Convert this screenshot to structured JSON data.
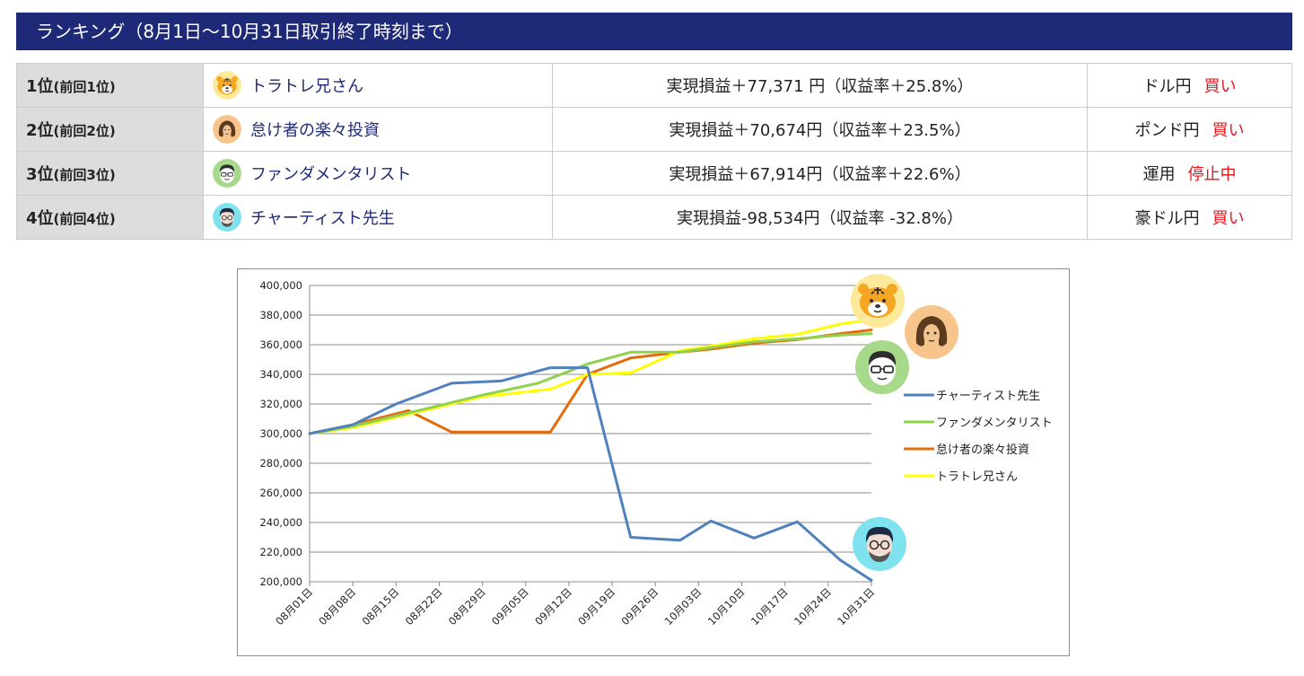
{
  "header": {
    "title": "ランキング（8月1日～10月31日取引終了時刻まで）"
  },
  "ranking": [
    {
      "rank": "1位",
      "prev": "(前回1位)",
      "name": "トラトレ兄さん",
      "avatar": "tiger-avatar-icon",
      "pnl": "実現損益＋77,371 円（収益率＋25.8%）",
      "pair": "ドル円",
      "action": "買い"
    },
    {
      "rank": "2位",
      "prev": "(前回2位)",
      "name": "怠け者の楽々投資",
      "avatar": "long-hair-avatar-icon",
      "pnl": "実現損益＋70,674円（収益率＋23.5%）",
      "pair": "ポンド円",
      "action": "買い"
    },
    {
      "rank": "3位",
      "prev": "(前回3位)",
      "name": "ファンダメンタリスト",
      "avatar": "glasses-avatar-icon",
      "pnl": "実現損益＋67,914円（収益率＋22.6%）",
      "pair": "運用",
      "action": "停止中"
    },
    {
      "rank": "4位",
      "prev": "(前回4位)",
      "name": "チャーティスト先生",
      "avatar": "bearded-avatar-icon",
      "pnl": "実現損益-98,534円（収益率 -32.8%）",
      "pair": "豪ドル円",
      "action": "買い"
    }
  ],
  "colors": {
    "header_bg": "#1e2a78",
    "action_red": "#e0161b",
    "rank_bg": "#dcdcdc"
  },
  "chart_data": {
    "type": "line",
    "title": "",
    "xlabel": "",
    "ylabel": "",
    "ylim": [
      200000,
      400000
    ],
    "yticks": [
      200000,
      220000,
      240000,
      260000,
      280000,
      300000,
      320000,
      340000,
      360000,
      380000,
      400000
    ],
    "ytick_labels": [
      "200,000",
      "220,000",
      "240,000",
      "260,000",
      "280,000",
      "300,000",
      "320,000",
      "340,000",
      "360,000",
      "380,000",
      "400,000"
    ],
    "categories": [
      "08月01日",
      "08月08日",
      "08月15日",
      "08月22日",
      "08月29日",
      "09月05日",
      "09月12日",
      "09月19日",
      "09月26日",
      "10月03日",
      "10月10日",
      "10月17日",
      "10月24日",
      "10月31日"
    ],
    "grid": true,
    "legend_position": "right",
    "series": [
      {
        "name": "チャーティスト先生",
        "color": "#4f81bd",
        "x": [
          "2023-08-01",
          "2023-08-08",
          "2023-08-15",
          "2023-08-24",
          "2023-09-01",
          "2023-09-09",
          "2023-09-15",
          "2023-09-22",
          "2023-09-30",
          "2023-10-05",
          "2023-10-12",
          "2023-10-19",
          "2023-10-26",
          "2023-10-31"
        ],
        "values": [
          300000,
          306000,
          320000,
          334000,
          335500,
          344500,
          344500,
          230000,
          228000,
          241000,
          229500,
          240500,
          214500,
          201000
        ]
      },
      {
        "name": "ファンダメンタリスト",
        "color": "#92d050",
        "x": [
          "2023-08-01",
          "2023-08-08",
          "2023-08-22",
          "2023-08-29",
          "2023-09-07",
          "2023-09-15",
          "2023-09-22",
          "2023-09-30",
          "2023-10-05",
          "2023-10-12",
          "2023-10-19",
          "2023-10-26",
          "2023-10-31"
        ],
        "values": [
          300000,
          305000,
          319000,
          326000,
          334000,
          347000,
          355000,
          355000,
          358000,
          362000,
          364000,
          366500,
          367500
        ]
      },
      {
        "name": "怠け者の楽々投資",
        "color": "#e46c0a",
        "x": [
          "2023-08-01",
          "2023-08-08",
          "2023-08-17",
          "2023-08-24",
          "2023-09-01",
          "2023-09-09",
          "2023-09-15",
          "2023-09-22",
          "2023-09-30",
          "2023-10-05",
          "2023-10-12",
          "2023-10-19",
          "2023-10-26",
          "2023-10-31"
        ],
        "values": [
          300000,
          306000,
          315500,
          301000,
          301000,
          301000,
          340000,
          351000,
          355000,
          357000,
          361000,
          363500,
          367500,
          370000
        ]
      },
      {
        "name": "トラトレ兄さん",
        "color": "#ffff00",
        "x": [
          "2023-08-01",
          "2023-08-08",
          "2023-08-22",
          "2023-08-29",
          "2023-09-09",
          "2023-09-15",
          "2023-09-22",
          "2023-09-30",
          "2023-10-05",
          "2023-10-12",
          "2023-10-19",
          "2023-10-26",
          "2023-10-31"
        ],
        "values": [
          300000,
          304000,
          318000,
          325000,
          330000,
          340000,
          341000,
          356000,
          359000,
          364000,
          367000,
          374000,
          377000
        ]
      }
    ],
    "avatars": [
      {
        "icon": "tiger-avatar-icon",
        "series": "トラトレ兄さん"
      },
      {
        "icon": "long-hair-avatar-icon",
        "series": "怠け者の楽々投資"
      },
      {
        "icon": "glasses-avatar-icon",
        "series": "ファンダメンタリスト"
      },
      {
        "icon": "bearded-avatar-icon",
        "series": "チャーティスト先生"
      }
    ]
  }
}
